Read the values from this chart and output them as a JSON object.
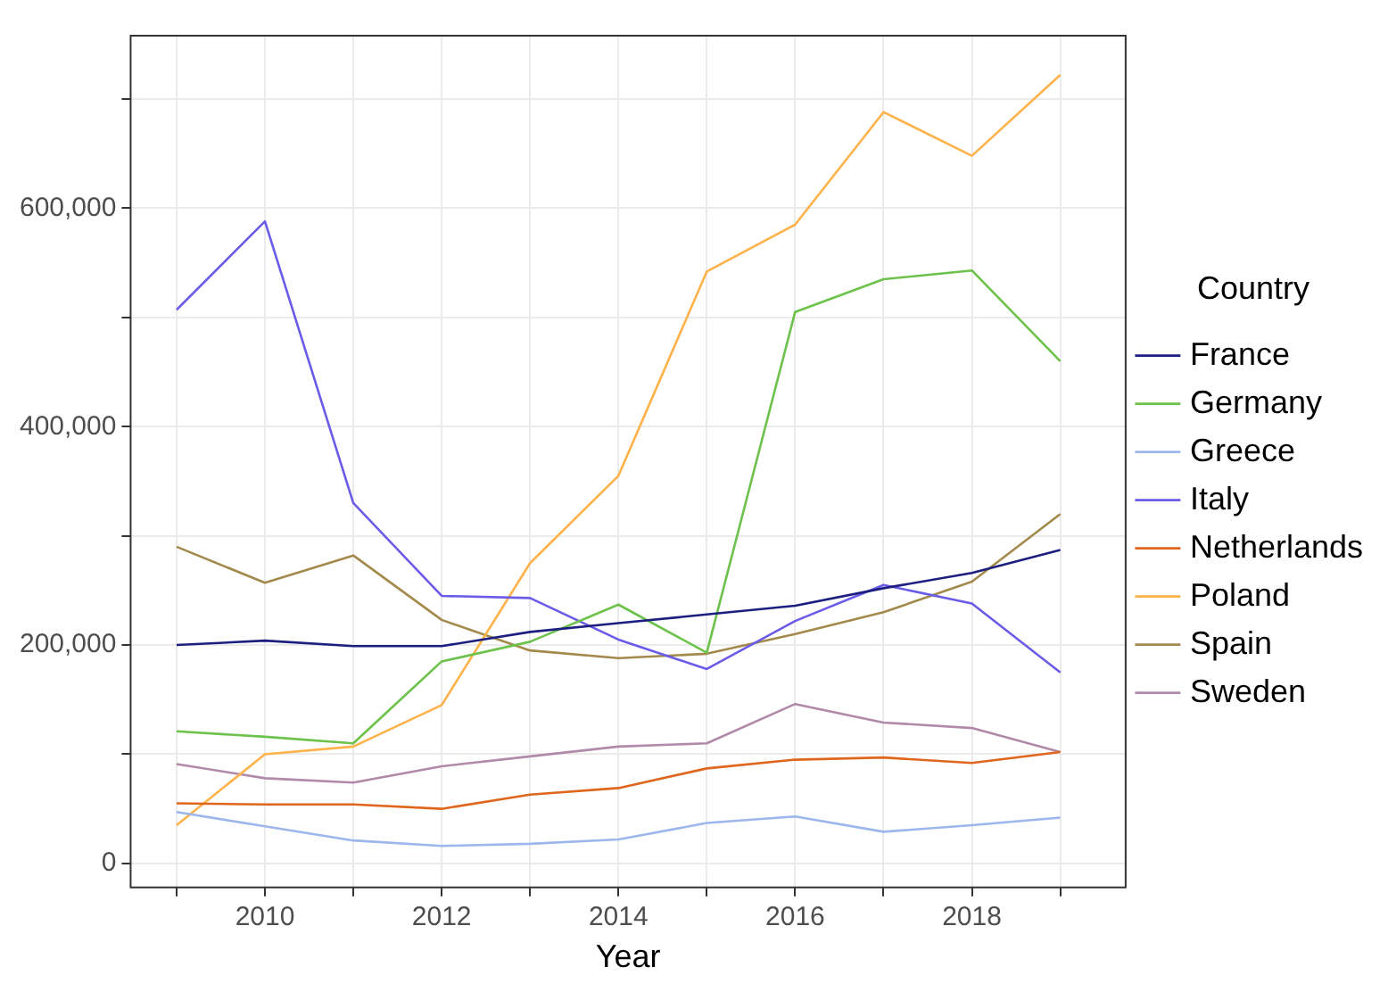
{
  "chart_data": {
    "type": "line",
    "xlabel": "Year",
    "legend_title": "Country",
    "legend": "right",
    "grid": true,
    "marker": "none",
    "line_style": "solid",
    "x": [
      2009,
      2010,
      2011,
      2012,
      2013,
      2014,
      2015,
      2016,
      2017,
      2018,
      2019
    ],
    "xlim": [
      2008.48,
      2019.74
    ],
    "xticks": [
      {
        "value": 2009,
        "label": null
      },
      2010,
      {
        "value": 2011,
        "label": null
      },
      2012,
      {
        "value": 2013,
        "label": null
      },
      2014,
      {
        "value": 2015,
        "label": null
      },
      2016,
      {
        "value": 2017,
        "label": null
      },
      2018,
      {
        "value": 2019,
        "label": null
      }
    ],
    "ylim": [
      -22000,
      758000
    ],
    "yticks": [
      {
        "value": 0,
        "label": "0"
      },
      {
        "value": 100000,
        "label": null
      },
      {
        "value": 200000,
        "label": "200,000"
      },
      {
        "value": 300000,
        "label": null
      },
      {
        "value": 400000,
        "label": "400,000"
      },
      {
        "value": 500000,
        "label": null
      },
      {
        "value": 600000,
        "label": "600,000"
      },
      {
        "value": 700000,
        "label": null
      }
    ],
    "series": [
      {
        "name": "France",
        "color": "#1c1f80",
        "values": [
          200000,
          204000,
          199000,
          199000,
          212000,
          220000,
          228000,
          236000,
          252000,
          266000,
          287000
        ]
      },
      {
        "name": "Germany",
        "color": "#6cc24a",
        "values": [
          121000,
          116000,
          110000,
          185000,
          203000,
          237000,
          193000,
          505000,
          535000,
          543000,
          460000
        ]
      },
      {
        "name": "Greece",
        "color": "#9db6ec",
        "values": [
          47000,
          34000,
          21000,
          16000,
          18000,
          22000,
          37000,
          43000,
          29000,
          35000,
          42000
        ]
      },
      {
        "name": "Italy",
        "color": "#6a5ce8",
        "values": [
          507000,
          588000,
          330000,
          245000,
          243000,
          205000,
          178000,
          222000,
          255000,
          238000,
          175000
        ]
      },
      {
        "name": "Netherlands",
        "color": "#e0661e",
        "values": [
          55000,
          54000,
          54000,
          50000,
          63000,
          69000,
          87000,
          95000,
          97000,
          92000,
          102000
        ]
      },
      {
        "name": "Poland",
        "color": "#ffb24a",
        "values": [
          35000,
          100000,
          107000,
          145000,
          275000,
          355000,
          542000,
          585000,
          688000,
          648000,
          722000
        ]
      },
      {
        "name": "Spain",
        "color": "#a38a4c",
        "values": [
          290000,
          257000,
          282000,
          223000,
          195000,
          188000,
          192000,
          210000,
          230000,
          258000,
          320000
        ]
      },
      {
        "name": "Sweden",
        "color": "#b08aa8",
        "values": [
          91000,
          78000,
          74000,
          89000,
          98000,
          107000,
          110000,
          146000,
          129000,
          124000,
          102000
        ]
      }
    ]
  }
}
